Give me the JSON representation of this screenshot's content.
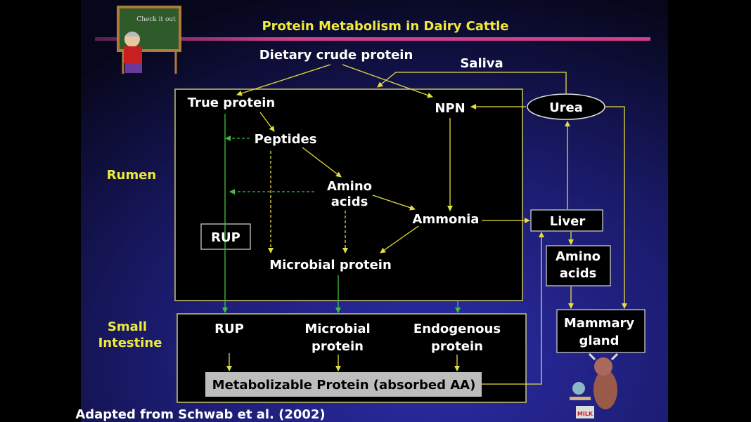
{
  "title": "Protein Metabolism in Dairy Cattle",
  "colors": {
    "title": "#f0ea3a",
    "arrow": "#e6de3c",
    "green_arrow": "#3fc040",
    "accent_bar": "#d0408a",
    "background": "#23238a"
  },
  "nodes": {
    "dietary": "Dietary  crude protein",
    "saliva": "Saliva",
    "true_protein": "True protein",
    "npn": "NPN",
    "urea": "Urea",
    "peptides": "Peptides",
    "amino_acids_rumen": [
      "Amino",
      "acids"
    ],
    "ammonia": "Ammonia",
    "liver": "Liver",
    "rup_rumen": "RUP",
    "microbial_rumen": "Microbial protein",
    "amino_acids_blood": [
      "Amino",
      "acids"
    ],
    "rup_si": "RUP",
    "microbial_si": [
      "Microbial",
      "protein"
    ],
    "endogenous_si": [
      "Endogenous",
      "protein"
    ],
    "mammary": [
      "Mammary",
      "gland"
    ],
    "mp": "Metabolizable Protein (absorbed AA)"
  },
  "regions": {
    "rumen": "Rumen",
    "small_intestine": [
      "Small",
      "Intestine"
    ]
  },
  "footer": "Adapted from Schwab et al. (2002)",
  "clipart": {
    "teacher_board": "Check it out",
    "cow_sign": "MILK"
  }
}
